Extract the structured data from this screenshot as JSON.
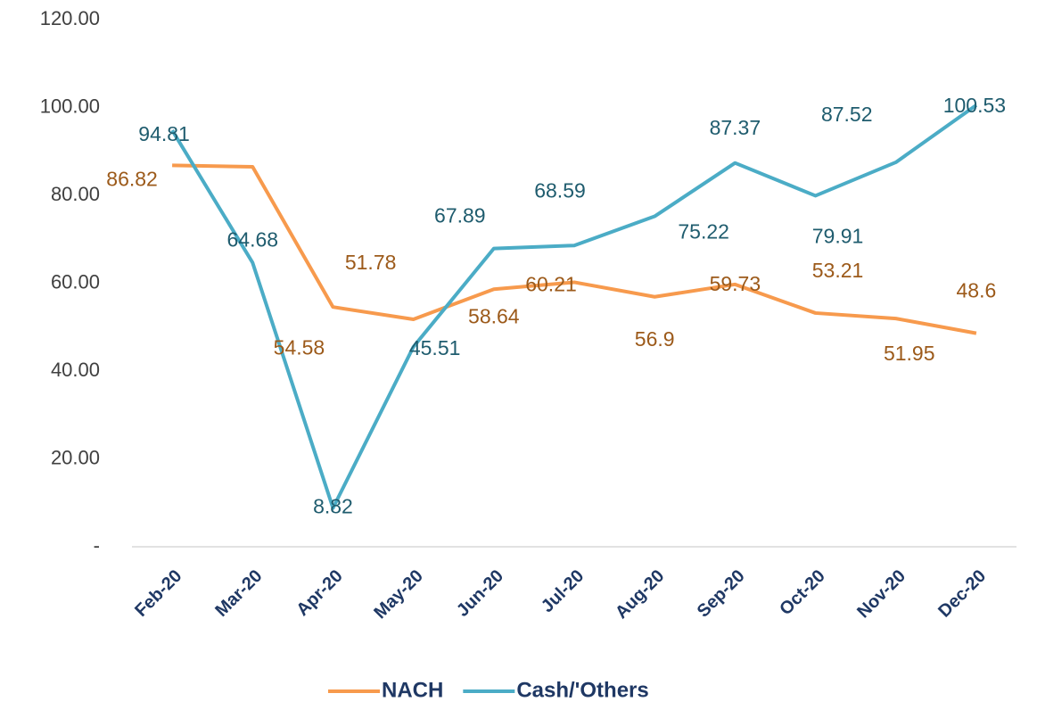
{
  "chart_data": {
    "type": "line",
    "categories": [
      "Feb-20",
      "Mar-20",
      "Apr-20",
      "May-20",
      "Jun-20",
      "Jul-20",
      "Aug-20",
      "Sep-20",
      "Oct-20",
      "Nov-20",
      "Dec-20"
    ],
    "series": [
      {
        "name": "NACH",
        "color": "#f79a4d",
        "values": [
          86.82,
          86.5,
          54.58,
          51.78,
          58.64,
          60.21,
          56.9,
          59.73,
          53.21,
          51.95,
          48.6
        ],
        "value_labels": [
          "86.82",
          null,
          "54.58",
          "51.78",
          "58.64",
          "60.21",
          "56.9",
          "59.73",
          "53.21",
          "51.95",
          "48.6"
        ]
      },
      {
        "name": "Cash/'Others",
        "color": "#4bacc6",
        "values": [
          94.81,
          64.68,
          8.82,
          45.51,
          67.89,
          68.59,
          75.22,
          87.37,
          79.91,
          87.52,
          100.53
        ]
      }
    ],
    "ylim": [
      0,
      120
    ],
    "yticks": [
      {
        "value": 0,
        "label": "-"
      },
      {
        "value": 20,
        "label": "20.00"
      },
      {
        "value": 40,
        "label": "40.00"
      },
      {
        "value": 60,
        "label": "60.00"
      },
      {
        "value": 80,
        "label": "80.00"
      },
      {
        "value": 100,
        "label": "100.00"
      },
      {
        "value": 120,
        "label": "120.00"
      }
    ],
    "grid": false,
    "legend": "bottom"
  }
}
